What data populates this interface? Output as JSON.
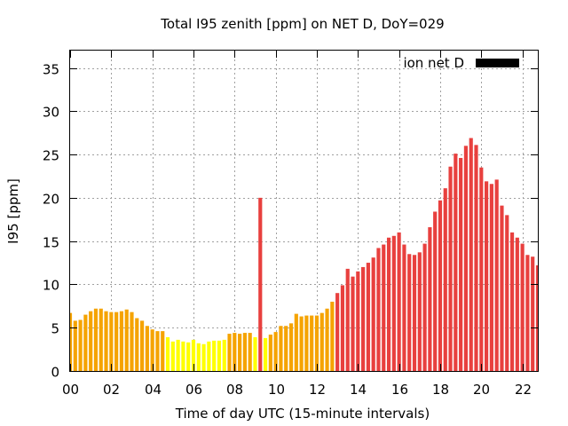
{
  "chart_data": {
    "type": "bar",
    "title": "Total I95 zenith [ppm] on NET D, DoY=029",
    "xlabel": "Time of day UTC (15-minute intervals)",
    "ylabel": "I95 [ppm]",
    "legend": {
      "label": "ion net D",
      "color": "#000000",
      "placement": "top-right"
    },
    "grid": true,
    "xlim": [
      0,
      22.75
    ],
    "ylim": [
      0,
      37
    ],
    "x_ticks": [
      "00",
      "02",
      "04",
      "06",
      "08",
      "10",
      "12",
      "14",
      "16",
      "18",
      "20",
      "22"
    ],
    "y_ticks": [
      "0",
      "5",
      "10",
      "15",
      "20",
      "25",
      "30",
      "35"
    ],
    "interval_hours": 0.25,
    "colors": {
      "green_level": "#ffff00",
      "orange_level": "#f5a300",
      "red_level": "#e8403e"
    },
    "values": [
      6.7,
      5.8,
      5.9,
      6.5,
      6.9,
      7.2,
      7.2,
      6.9,
      6.8,
      6.8,
      6.9,
      7.1,
      6.8,
      6.1,
      5.8,
      5.2,
      4.8,
      4.6,
      4.6,
      3.9,
      3.4,
      3.6,
      3.4,
      3.3,
      3.6,
      3.2,
      3.1,
      3.4,
      3.5,
      3.5,
      3.6,
      4.3,
      4.4,
      4.3,
      4.4,
      4.4,
      3.9,
      20.0,
      3.8,
      4.2,
      4.5,
      5.2,
      5.2,
      5.5,
      6.6,
      6.3,
      6.4,
      6.4,
      6.4,
      6.7,
      7.2,
      8.0,
      9.0,
      9.9,
      11.8,
      10.9,
      11.5,
      12.0,
      12.5,
      13.1,
      14.2,
      14.6,
      15.4,
      15.6,
      16.0,
      14.6,
      13.5,
      13.4,
      13.7,
      14.7,
      16.6,
      18.4,
      19.7,
      21.1,
      23.6,
      25.1,
      24.6,
      26.0,
      26.9,
      26.1,
      23.5,
      21.9,
      21.6,
      22.1,
      19.1,
      18.0,
      16.0,
      15.4,
      14.7,
      13.4,
      13.2,
      12.2
    ],
    "levels": [
      "O",
      "O",
      "O",
      "O",
      "O",
      "O",
      "O",
      "O",
      "O",
      "O",
      "O",
      "O",
      "O",
      "O",
      "O",
      "O",
      "O",
      "O",
      "O",
      "G",
      "G",
      "G",
      "G",
      "G",
      "G",
      "G",
      "G",
      "G",
      "G",
      "G",
      "G",
      "O",
      "O",
      "O",
      "O",
      "O",
      "G",
      "R",
      "G",
      "O",
      "O",
      "O",
      "O",
      "O",
      "O",
      "O",
      "O",
      "O",
      "O",
      "O",
      "O",
      "O",
      "R",
      "R",
      "R",
      "R",
      "R",
      "R",
      "R",
      "R",
      "R",
      "R",
      "R",
      "R",
      "R",
      "R",
      "R",
      "R",
      "R",
      "R",
      "R",
      "R",
      "R",
      "R",
      "R",
      "R",
      "R",
      "R",
      "R",
      "R",
      "R",
      "R",
      "R",
      "R",
      "R",
      "R",
      "R",
      "R",
      "R",
      "R",
      "R",
      "R"
    ]
  }
}
